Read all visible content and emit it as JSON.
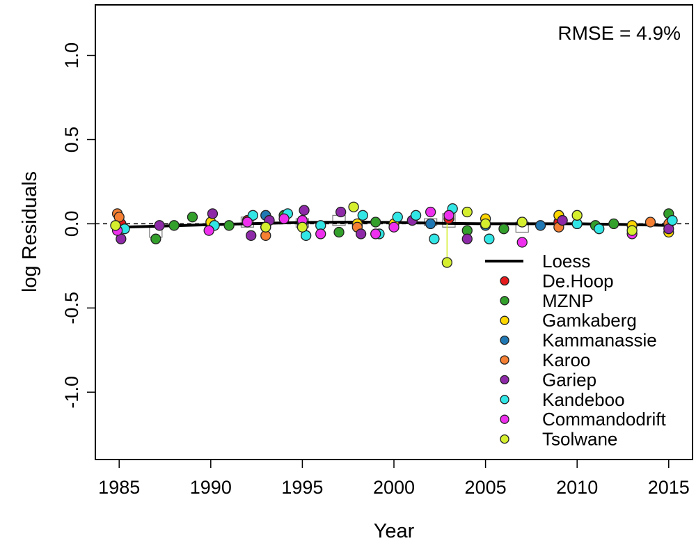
{
  "chart_data": {
    "type": "scatter",
    "title": "",
    "xlabel": "Year",
    "ylabel": "log Residuals",
    "xlim": [
      1983.7,
      2016.3
    ],
    "ylim": [
      -1.4,
      1.3
    ],
    "x_ticks": [
      1985,
      1990,
      1995,
      2000,
      2005,
      2010,
      2015
    ],
    "x_tick_labels": [
      "1985",
      "1990",
      "1995",
      "2000",
      "2005",
      "2010",
      "2015"
    ],
    "y_ticks": [
      -1.0,
      -0.5,
      0.0,
      0.5,
      1.0
    ],
    "y_tick_labels": [
      "-1.0",
      "-0.5",
      "0.0",
      "0.5",
      "1.0"
    ],
    "grid": false,
    "reference_line": 0.0,
    "annotation": "RMSE = 4.9%",
    "legend_placement": "bottom-right",
    "legend": [
      {
        "label": "Loess",
        "kind": "line",
        "color": "#000000"
      },
      {
        "label": "De.Hoop",
        "kind": "point",
        "color": "#e41a1c"
      },
      {
        "label": "MZNP",
        "kind": "point",
        "color": "#33a02c"
      },
      {
        "label": "Gamkaberg",
        "kind": "point",
        "color": "#ffd700"
      },
      {
        "label": "Kammanassie",
        "kind": "point",
        "color": "#1f78b4"
      },
      {
        "label": "Karoo",
        "kind": "point",
        "color": "#f57f32"
      },
      {
        "label": "Gariep",
        "kind": "point",
        "color": "#8e2aa8"
      },
      {
        "label": "Kandeboo",
        "kind": "point",
        "color": "#32e6e6"
      },
      {
        "label": "Commandodrift",
        "kind": "point",
        "color": "#ee30ee"
      },
      {
        "label": "Tsolwane",
        "kind": "point",
        "color": "#d5ef2e"
      }
    ],
    "loess": {
      "x": [
        1985,
        1987,
        1990,
        1992,
        1995,
        1998,
        2000,
        2003,
        2005,
        2008,
        2010,
        2013,
        2015
      ],
      "y": [
        -0.02,
        -0.015,
        -0.005,
        0.0,
        0.008,
        0.01,
        0.008,
        0.002,
        0.0,
        0.0,
        0.0,
        -0.005,
        -0.01
      ]
    },
    "boxes": [
      {
        "x": 1987,
        "low": -0.08,
        "high": -0.01
      },
      {
        "x": 1992,
        "low": -0.02,
        "high": 0.04
      },
      {
        "x": 1995,
        "low": -0.02,
        "high": 0.03
      },
      {
        "x": 1997,
        "low": -0.01,
        "high": 0.05
      },
      {
        "x": 2002,
        "low": -0.01,
        "high": 0.03
      },
      {
        "x": 2003,
        "low": -0.02,
        "high": 0.06
      },
      {
        "x": 2007,
        "low": -0.05,
        "high": 0.01
      }
    ],
    "series": [
      {
        "name": "De.Hoop",
        "color": "#e41a1c",
        "x": [
          1985.1,
          1992.0,
          1998.0,
          2003.0,
          2009.0
        ],
        "y": [
          0.0,
          0.02,
          -0.01,
          0.03,
          0.01
        ]
      },
      {
        "name": "MZNP",
        "color": "#33a02c",
        "x": [
          1987.0,
          1988.0,
          1989.0,
          1991.0,
          1994.0,
          1997.0,
          1999.0,
          2004.0,
          2006.0,
          2010.0,
          2011.0,
          2012.0,
          2015.0
        ],
        "y": [
          -0.09,
          -0.01,
          0.04,
          -0.01,
          0.05,
          -0.05,
          0.01,
          -0.04,
          -0.03,
          0.0,
          -0.01,
          0.0,
          0.06
        ]
      },
      {
        "name": "Gamkaberg",
        "color": "#ffd700",
        "x": [
          1990.0,
          1993.0,
          1998.0,
          2000.0,
          2005.0,
          2007.0,
          2009.0,
          2013.0,
          2015.0
        ],
        "y": [
          0.01,
          -0.02,
          0.0,
          0.0,
          0.03,
          0.01,
          0.05,
          -0.01,
          -0.05
        ]
      },
      {
        "name": "Kammanassie",
        "color": "#1f78b4",
        "x": [
          1993.0,
          1995.0,
          2002.0,
          2005.0,
          2008.0
        ],
        "y": [
          0.05,
          0.0,
          0.0,
          -0.01,
          -0.01
        ]
      },
      {
        "name": "Karoo",
        "color": "#f57f32",
        "x": [
          1984.9,
          1985.0,
          1993.0,
          1998.0,
          2009.0,
          2014.0,
          2015.0
        ],
        "y": [
          0.06,
          0.04,
          -0.07,
          -0.02,
          -0.02,
          0.01,
          0.0
        ]
      },
      {
        "name": "Gariep",
        "color": "#8e2aa8",
        "x": [
          1985.1,
          1987.2,
          1990.1,
          1992.2,
          1993.2,
          1995.1,
          1997.1,
          1998.2,
          2001.0,
          2004.0,
          2009.2,
          2015.0
        ],
        "y": [
          -0.09,
          -0.01,
          0.06,
          -0.07,
          0.02,
          0.08,
          0.07,
          -0.06,
          0.02,
          -0.09,
          0.02,
          -0.03
        ]
      },
      {
        "name": "Kandeboo",
        "color": "#32e6e6",
        "x": [
          1985.3,
          1990.2,
          1992.3,
          1994.2,
          1995.2,
          1996.0,
          1998.3,
          1999.2,
          2000.2,
          2001.2,
          2002.2,
          2003.2,
          2005.2,
          2010.0,
          2011.2,
          2015.2
        ],
        "y": [
          -0.03,
          -0.01,
          0.05,
          0.06,
          -0.07,
          -0.01,
          0.05,
          -0.06,
          0.04,
          0.05,
          -0.09,
          0.09,
          -0.09,
          0.0,
          -0.03,
          0.02
        ]
      },
      {
        "name": "Commandodrift",
        "color": "#ee30ee",
        "x": [
          1984.9,
          1989.9,
          1992.0,
          1994.0,
          1995.0,
          1996.0,
          1999.0,
          2000.0,
          2002.0,
          2003.0,
          2007.0,
          2013.0
        ],
        "y": [
          -0.04,
          -0.04,
          0.01,
          0.03,
          0.02,
          -0.06,
          -0.06,
          -0.02,
          0.07,
          0.05,
          -0.11,
          -0.06
        ]
      },
      {
        "name": "Tsolwane",
        "color": "#d5ef2e",
        "x": [
          1984.8,
          1993.0,
          1995.0,
          1997.8,
          2002.9,
          2004.0,
          2005.0,
          2007.0,
          2010.0,
          2013.0
        ],
        "y": [
          -0.01,
          -0.02,
          -0.02,
          0.1,
          -0.23,
          0.07,
          0.0,
          0.01,
          0.05,
          -0.04
        ]
      }
    ]
  }
}
